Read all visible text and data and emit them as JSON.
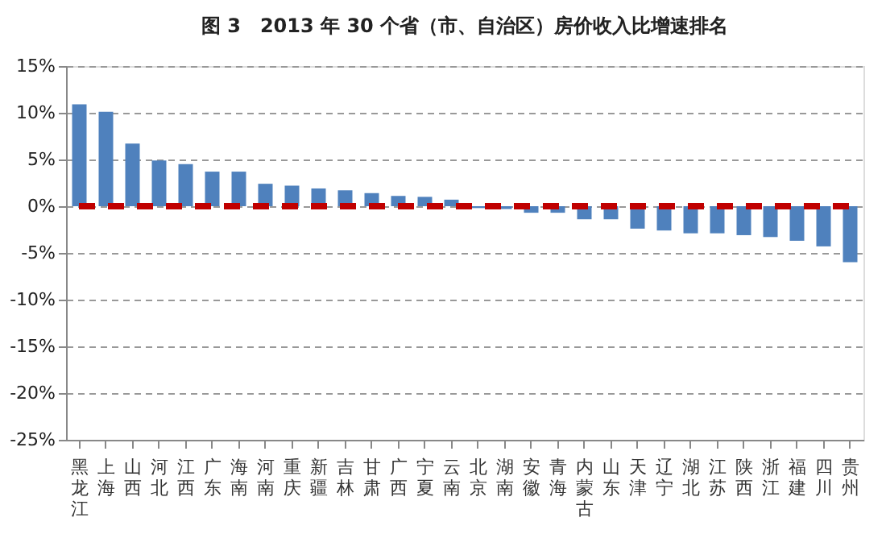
{
  "chart_data": {
    "type": "bar",
    "title": "图 3　2013 年 30 个省（市、自治区）房价收入比增速排名",
    "categories": [
      "黑龙江",
      "上海",
      "山西",
      "河北",
      "江西",
      "广东",
      "海南",
      "河南",
      "重庆",
      "新疆",
      "吉林",
      "甘肃",
      "广西",
      "宁夏",
      "云南",
      "北京",
      "湖南",
      "安徽",
      "青海",
      "内蒙古",
      "山东",
      "天津",
      "辽宁",
      "湖北",
      "江苏",
      "陕西",
      "浙江",
      "福建",
      "四川",
      "贵州"
    ],
    "values": [
      10.9,
      10.1,
      6.7,
      4.9,
      4.5,
      3.7,
      3.7,
      2.4,
      2.2,
      1.9,
      1.7,
      1.4,
      1.1,
      1.0,
      0.7,
      -0.2,
      -0.3,
      -0.7,
      -0.7,
      -1.4,
      -1.4,
      -2.4,
      -2.6,
      -2.9,
      -2.9,
      -3.1,
      -3.3,
      -3.7,
      -4.3,
      -6.0
    ],
    "color": "#4f81bd",
    "ylim": [
      -25,
      15
    ],
    "yticks": [
      {
        "value": -25,
        "label": "-25%"
      },
      {
        "value": -20,
        "label": "-20%"
      },
      {
        "value": -15,
        "label": "-15%"
      },
      {
        "value": -10,
        "label": "-10%"
      },
      {
        "value": -5,
        "label": "-5%"
      },
      {
        "value": 0,
        "label": "0%"
      },
      {
        "value": 5,
        "label": "5%"
      },
      {
        "value": 10,
        "label": "10%"
      },
      {
        "value": 15,
        "label": "15%"
      }
    ],
    "grid": "y",
    "ref_lines": [
      {
        "axis": "y",
        "value": 0,
        "color": "#c00000",
        "line_style": "dashed"
      }
    ]
  }
}
